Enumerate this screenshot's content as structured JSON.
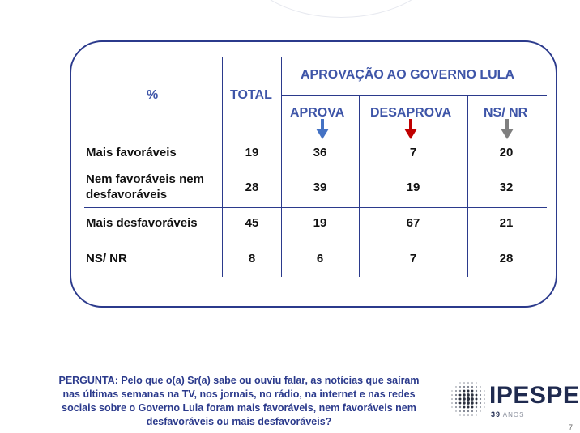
{
  "table": {
    "corner_label": "%",
    "total_label": "TOTAL",
    "group_label": "APROVAÇÃO AO GOVERNO LULA",
    "sub_columns": [
      {
        "label": "APROVA",
        "arrow_color": "#4472c4"
      },
      {
        "label": "DESAPROVA",
        "arrow_color": "#c00000"
      },
      {
        "label": "NS/ NR",
        "arrow_color": "#7f7f7f"
      }
    ],
    "rows": [
      {
        "label_lines": [
          "Mais favoráveis"
        ],
        "total": "19",
        "aprova": "36",
        "desaprova": "7",
        "nsnr": "20"
      },
      {
        "label_lines": [
          "Nem favoráveis nem",
          "desfavoráveis"
        ],
        "total": "28",
        "aprova": "39",
        "desaprova": "19",
        "nsnr": "32"
      },
      {
        "label_lines": [
          "Mais desfavoráveis"
        ],
        "total": "45",
        "aprova": "19",
        "desaprova": "67",
        "nsnr": "21"
      },
      {
        "label_lines": [
          "NS/ NR"
        ],
        "total": "8",
        "aprova": "6",
        "desaprova": "7",
        "nsnr": "28"
      }
    ]
  },
  "question": {
    "lines": [
      "PERGUNTA:  Pelo que o(a) Sr(a) sabe ou ouviu falar, as notícias que saíram",
      "nas últimas semanas na TV, nos jornais, no rádio, na internet e nas redes",
      "sociais sobre o Governo Lula foram mais favoráveis, nem favoráveis nem",
      "desfavoráveis ou mais desfavoráveis?"
    ]
  },
  "logo": {
    "name": "IPESPE",
    "years_number": "39",
    "years_word": "ANOS",
    "icon": "dot-globe-icon"
  },
  "page_number": "7"
}
